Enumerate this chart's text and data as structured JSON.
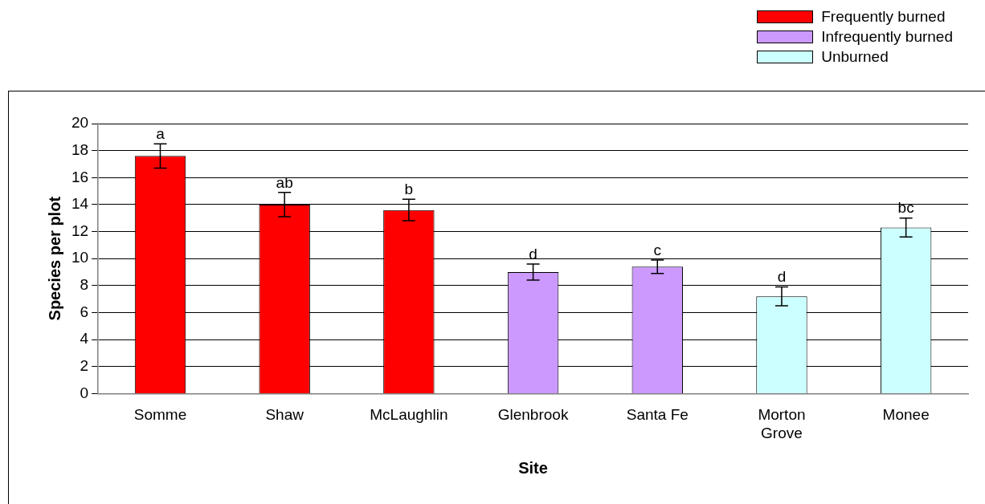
{
  "chart_data": {
    "type": "bar",
    "xlabel": "Site",
    "ylabel": "Species per plot",
    "categories": [
      "Somme",
      "Shaw",
      "McLaughlin",
      "Glenbrook",
      "Santa Fe",
      "Morton Grove",
      "Monee"
    ],
    "series": [
      {
        "name": "Frequently burned",
        "color": "#ff0000",
        "values": [
          17.6,
          14.0,
          13.6,
          null,
          null,
          null,
          null
        ],
        "errors": [
          0.9,
          0.9,
          0.8,
          null,
          null,
          null,
          null
        ]
      },
      {
        "name": "Infrequently burned",
        "color": "#cc99ff",
        "values": [
          null,
          null,
          null,
          9.0,
          9.4,
          null,
          null
        ],
        "errors": [
          null,
          null,
          null,
          0.6,
          0.5,
          null,
          null
        ]
      },
      {
        "name": "Unburned",
        "color": "#ccffff",
        "values": [
          null,
          null,
          null,
          null,
          null,
          7.2,
          12.3
        ],
        "errors": [
          null,
          null,
          null,
          null,
          null,
          0.7,
          0.7
        ]
      }
    ],
    "ylim": [
      0,
      20
    ],
    "yticks": [
      0,
      2,
      4,
      6,
      8,
      10,
      12,
      14,
      16,
      18,
      20
    ],
    "grid": "y",
    "legend": "top right",
    "annotations": [
      {
        "text": "a",
        "x": "Somme",
        "y": 18.5
      },
      {
        "text": "ab",
        "x": "Shaw",
        "y": 14.9
      },
      {
        "text": "b",
        "x": "McLaughlin",
        "y": 14.4
      },
      {
        "text": "d",
        "x": "Glenbrook",
        "y": 9.6
      },
      {
        "text": "c",
        "x": "Santa Fe",
        "y": 9.9
      },
      {
        "text": "d",
        "x": "Morton Grove",
        "y": 7.9
      },
      {
        "text": "bc",
        "x": "Monee",
        "y": 13.0
      }
    ]
  }
}
